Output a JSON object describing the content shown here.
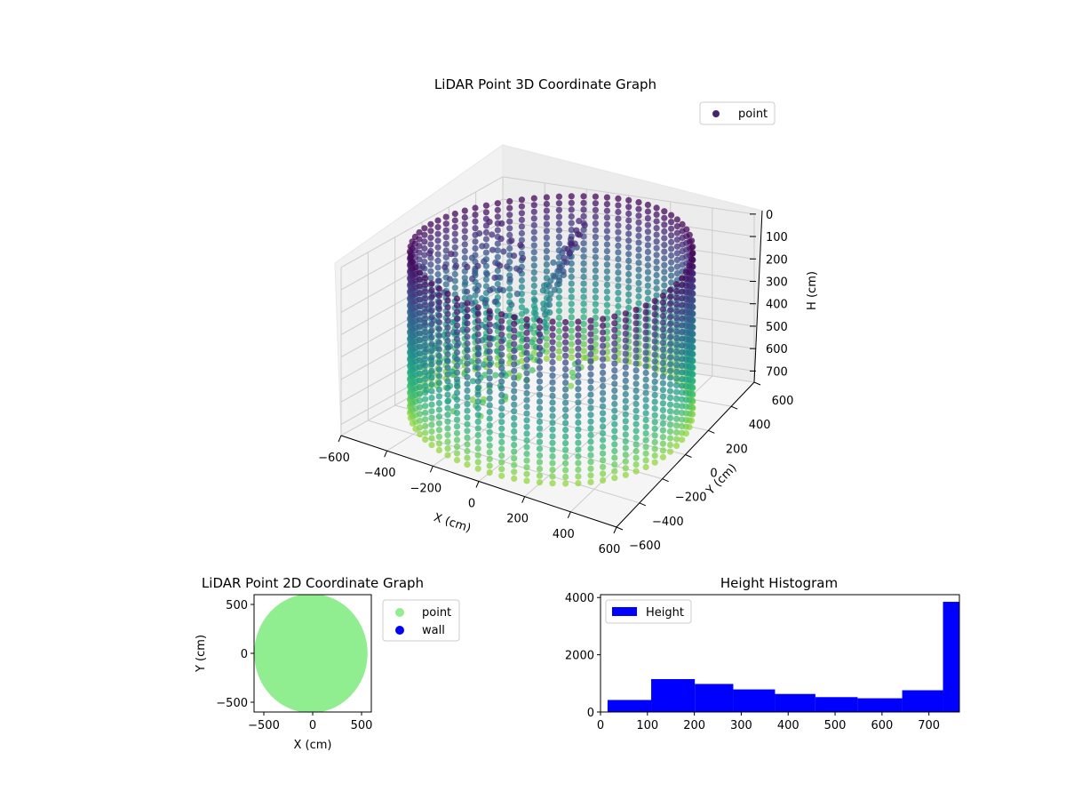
{
  "figure": {
    "background": "#ffffff"
  },
  "chart_data": [
    {
      "id": "scatter3d",
      "type": "scatter",
      "title": "LiDAR Point 3D Coordinate Graph",
      "xlabel": "X (cm)",
      "ylabel": "Y (cm)",
      "zlabel": "H (cm)",
      "xlim": [
        -600,
        600
      ],
      "ylim": [
        -600,
        600
      ],
      "zlim": [
        0,
        750
      ],
      "z_inverted": true,
      "xticks": [
        "−600",
        "−400",
        "−200",
        "0",
        "200",
        "400",
        "600"
      ],
      "yticks": [
        "−600",
        "−400",
        "−200",
        "0",
        "200",
        "400",
        "600"
      ],
      "zticks": [
        "0",
        "100",
        "200",
        "300",
        "400",
        "500",
        "600",
        "700"
      ],
      "grid": true,
      "legend": {
        "placement": "top-right",
        "entries": [
          {
            "label": "point",
            "color": "#482173"
          }
        ]
      },
      "colormap": "viridis",
      "description_values": {
        "wall_radius_cm": 560,
        "wall_height_range_cm": [
          0,
          720
        ]
      }
    },
    {
      "id": "scatter2d",
      "type": "scatter",
      "title": "LiDAR Point 2D Coordinate Graph",
      "xlabel": "X (cm)",
      "ylabel": "Y (cm)",
      "xlim": [
        -600,
        600
      ],
      "ylim": [
        -600,
        600
      ],
      "xticks": [
        "−500",
        "0",
        "500"
      ],
      "yticks": [
        "−500",
        "0",
        "500"
      ],
      "grid": false,
      "legend": {
        "placement": "outside-right",
        "entries": [
          {
            "label": "point",
            "color": "#90ee90"
          },
          {
            "label": "wall",
            "color": "#0000ff"
          }
        ]
      },
      "region": {
        "shape": "filled-disc",
        "color": "#90ee90",
        "radius_cm": 580
      }
    },
    {
      "id": "histogram",
      "type": "bar",
      "title": "Height Histogram",
      "xlabel": "",
      "ylabel": "",
      "xlim": [
        0,
        765
      ],
      "ylim": [
        0,
        4100
      ],
      "xticks": [
        "0",
        "100",
        "200",
        "300",
        "400",
        "500",
        "600",
        "700"
      ],
      "yticks": [
        "0",
        "2000",
        "4000"
      ],
      "legend": {
        "placement": "top-left",
        "entries": [
          {
            "label": "Height",
            "color": "#0000ff"
          }
        ]
      },
      "color": "#0000ff",
      "bin_edges": [
        15,
        108,
        201,
        283,
        372,
        458,
        548,
        643,
        730,
        765
      ],
      "values": [
        420,
        1150,
        980,
        790,
        630,
        520,
        480,
        760,
        3850
      ]
    }
  ]
}
